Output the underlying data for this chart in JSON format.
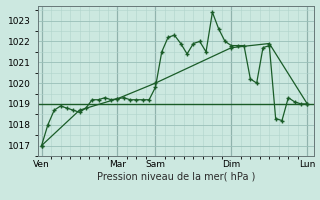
{
  "bg_color": "#cce8e0",
  "grid_color_minor": "#b0d4cc",
  "grid_color_major": "#99bfb8",
  "line_color": "#1a5c28",
  "xlabel": "Pression niveau de la mer( hPa )",
  "ylim": [
    1016.5,
    1023.7
  ],
  "yticks": [
    1017,
    1018,
    1019,
    1020,
    1021,
    1022,
    1023
  ],
  "xtick_labels": [
    "Ven",
    "Mar",
    "Sam",
    "Dim",
    "Lun"
  ],
  "xtick_positions": [
    0,
    24,
    36,
    60,
    84
  ],
  "vline_x": [
    0,
    24,
    36,
    60,
    84
  ],
  "series1_x": [
    0,
    2,
    4,
    6,
    8,
    10,
    12,
    14,
    16,
    18,
    20,
    22,
    24,
    26,
    28,
    30,
    32,
    34,
    36,
    38,
    40,
    42,
    44,
    46,
    48,
    50,
    52,
    54,
    56,
    58,
    60,
    62,
    64,
    66,
    68,
    70,
    72,
    74,
    76,
    78,
    80,
    82,
    84
  ],
  "series1_y": [
    1017.0,
    1018.0,
    1018.7,
    1018.9,
    1018.8,
    1018.7,
    1018.6,
    1018.8,
    1019.2,
    1019.2,
    1019.3,
    1019.2,
    1019.25,
    1019.3,
    1019.2,
    1019.2,
    1019.2,
    1019.2,
    1019.8,
    1021.5,
    1022.2,
    1022.3,
    1021.9,
    1021.4,
    1021.9,
    1022.0,
    1021.5,
    1023.4,
    1022.6,
    1022.0,
    1021.8,
    1021.8,
    1021.8,
    1020.2,
    1020.0,
    1021.7,
    1021.8,
    1018.3,
    1018.2,
    1019.3,
    1019.1,
    1019.0,
    1019.0
  ],
  "series2_x": [
    0,
    12,
    24,
    36,
    60,
    72,
    84
  ],
  "series2_y": [
    1017.0,
    1018.7,
    1019.25,
    1020.0,
    1021.7,
    1021.9,
    1019.0
  ],
  "hline_y": 1019.0
}
